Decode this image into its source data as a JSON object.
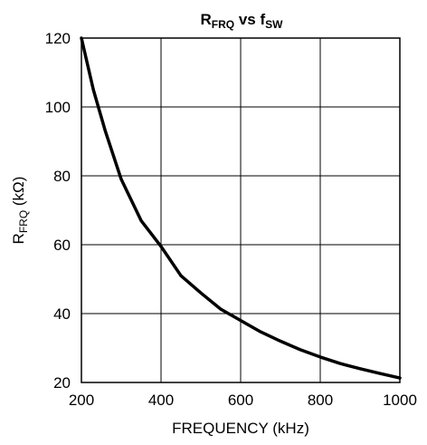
{
  "chart_data": {
    "type": "line",
    "title": {
      "main": "R",
      "main_sub": "FRQ",
      "mid": " vs f",
      "mid_sub": "SW"
    },
    "xlabel": "FREQUENCY (kHz)",
    "ylabel": {
      "main": "R",
      "sub": "FRQ",
      "rest": " (kΩ)"
    },
    "xlim": [
      200,
      1000
    ],
    "ylim": [
      20,
      120
    ],
    "xticks": [
      200,
      400,
      600,
      800,
      1000
    ],
    "yticks": [
      20,
      40,
      60,
      80,
      100,
      120
    ],
    "grid": true,
    "series": [
      {
        "x": [
          200,
          230,
          260,
          300,
          350,
          400,
          450,
          500,
          550,
          600,
          650,
          700,
          750,
          800,
          850,
          900,
          950,
          1000
        ],
        "y": [
          120,
          105,
          93,
          79,
          67,
          59.5,
          51,
          46,
          41.3,
          38,
          34.7,
          32,
          29.5,
          27.4,
          25.5,
          24,
          22.6,
          21.3
        ]
      }
    ]
  }
}
